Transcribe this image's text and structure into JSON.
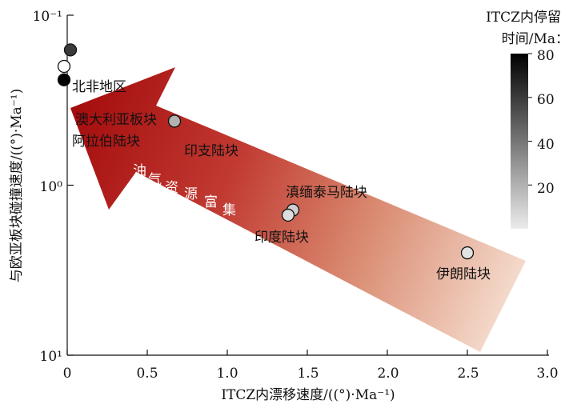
{
  "chart_data": {
    "type": "scatter",
    "title": "",
    "xlabel": "ITCZ内漂移速度/((°)·Ma⁻¹)",
    "ylabel": "与欧亚板块碰撞速度/((°)·Ma⁻¹)",
    "xlim": [
      0,
      3.0
    ],
    "ylim": [
      0.1,
      10
    ],
    "y_scale": "log-reversed",
    "x_ticks": [
      "0",
      "0.5",
      "1.0",
      "1.5",
      "2.0",
      "2.5",
      "3.0"
    ],
    "y_ticks": [
      "10⁻¹",
      "10⁰",
      "10¹"
    ],
    "colorbar": {
      "title_line1": "ITCZ内停留",
      "title_line2": "时间/Ma：",
      "range": [
        0,
        80
      ],
      "ticks": [
        "80",
        "60",
        "40",
        "20"
      ]
    },
    "arrow_label": [
      "油",
      "气",
      "资",
      "源",
      "富",
      "集"
    ],
    "points": [
      {
        "name": "北非地区",
        "x": 0.02,
        "y": 0.16,
        "residence_time": 60
      },
      {
        "name": "澳大利亚板块",
        "x": -0.02,
        "y": 0.2,
        "residence_time": 0
      },
      {
        "name": "阿拉伯陆块",
        "x": -0.02,
        "y": 0.24,
        "residence_time": 80
      },
      {
        "name": "印支陆块",
        "x": 0.67,
        "y": 0.42,
        "residence_time": 20
      },
      {
        "name": "滇缅泰马陆块",
        "x": 1.41,
        "y": 1.4,
        "residence_time": 10
      },
      {
        "name": "印度陆块",
        "x": 1.38,
        "y": 1.5,
        "residence_time": 5
      },
      {
        "name": "伊朗陆块",
        "x": 2.5,
        "y": 2.5,
        "residence_time": 3
      }
    ]
  }
}
